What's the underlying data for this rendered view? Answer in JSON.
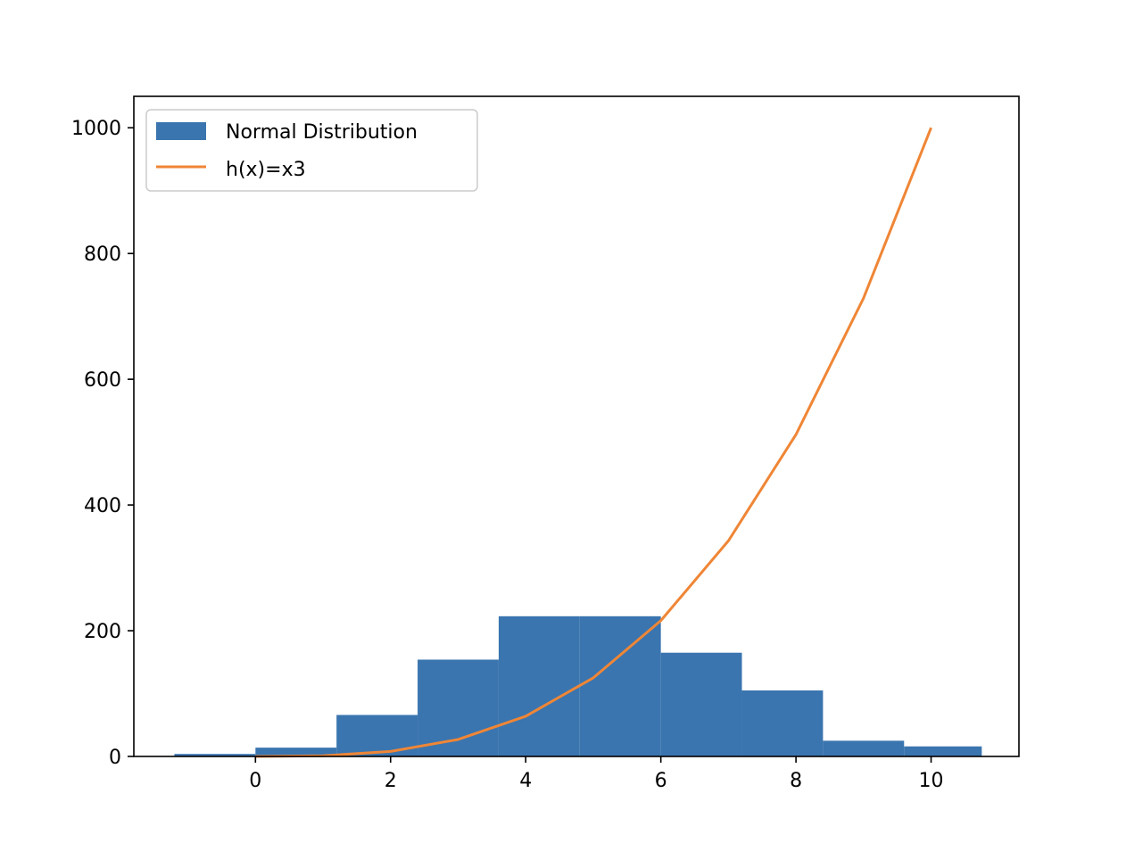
{
  "chart_data": {
    "type": "bar",
    "title": "",
    "xlabel": "",
    "ylabel": "",
    "xlim": [
      -1.8,
      11.3
    ],
    "ylim": [
      0,
      1050
    ],
    "xticks": [
      0,
      2,
      4,
      6,
      8,
      10
    ],
    "yticks": [
      0,
      200,
      400,
      600,
      800,
      1000
    ],
    "grid": false,
    "legend_position": "upper-left",
    "histogram": {
      "name": "Normal Distribution",
      "color": "#3a75af",
      "bin_edges": [
        -1.2,
        0.0,
        1.2,
        2.4,
        3.6,
        4.8,
        6.0,
        7.2,
        8.4,
        9.6,
        10.75
      ],
      "counts": [
        4,
        14,
        66,
        154,
        223,
        223,
        165,
        105,
        25,
        16
      ]
    },
    "line": {
      "name": "h(x)=x3",
      "color": "#ef8636",
      "x": [
        0,
        1,
        2,
        3,
        4,
        5,
        6,
        7,
        8,
        9,
        10
      ],
      "y": [
        0,
        1,
        8,
        27,
        64,
        125,
        216,
        343,
        512,
        729,
        1000
      ]
    }
  }
}
